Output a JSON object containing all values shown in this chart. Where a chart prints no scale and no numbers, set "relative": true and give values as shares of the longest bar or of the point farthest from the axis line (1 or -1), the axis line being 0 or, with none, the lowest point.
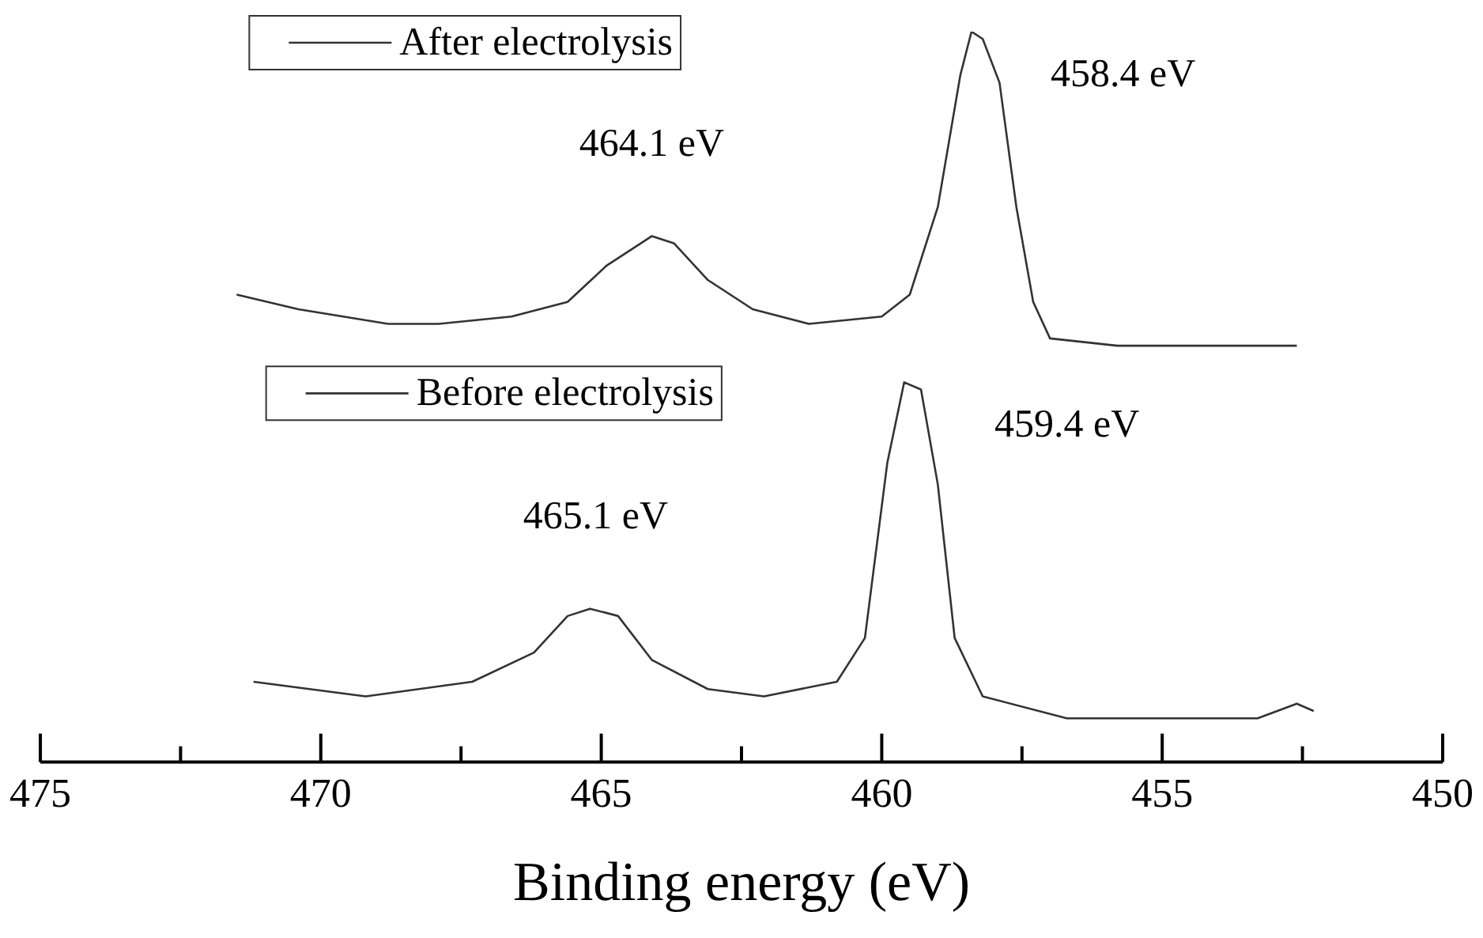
{
  "chart_data": {
    "type": "line",
    "xlabel": "Binding energy (eV)",
    "relative": true,
    "xlim": [
      475,
      450
    ],
    "xticks": [
      475,
      {
        "value": 472.5,
        "label": null
      },
      470,
      {
        "value": 467.5,
        "label": null
      },
      465,
      {
        "value": 462.5,
        "label": null
      },
      460,
      {
        "value": 457.5,
        "label": null
      },
      455,
      {
        "value": 452.5,
        "label": null
      },
      450
    ],
    "grid": false,
    "legend": "top left",
    "marker": "none",
    "line_style": "solid",
    "tick_labels": "x",
    "series": [
      {
        "name": "After electrolysis",
        "color": "#333333",
        "x": [
          471.5,
          470.4,
          468.8,
          467.9,
          466.6,
          465.6,
          464.9,
          464.1,
          463.7,
          463.1,
          462.3,
          461.3,
          460.0,
          459.5,
          459.0,
          458.6,
          458.4,
          458.2,
          457.9,
          457.6,
          457.3,
          457.0,
          455.8,
          453.9,
          452.6
        ],
        "values": [
          0.64,
          0.62,
          0.6,
          0.6,
          0.61,
          0.63,
          0.68,
          0.72,
          0.71,
          0.66,
          0.62,
          0.6,
          0.61,
          0.64,
          0.76,
          0.94,
          1,
          0.99,
          0.93,
          0.76,
          0.63,
          0.58,
          0.57,
          0.57,
          0.57
        ]
      },
      {
        "name": "Before electrolysis",
        "color": "#333333",
        "x": [
          471.2,
          469.2,
          467.3,
          466.2,
          465.6,
          465.2,
          464.7,
          464.1,
          463.1,
          462.1,
          460.8,
          460.3,
          459.9,
          459.6,
          459.3,
          459.0,
          458.7,
          458.2,
          456.7,
          455.2,
          453.3,
          452.6,
          452.3
        ],
        "values": [
          0.11,
          0.09,
          0.11,
          0.15,
          0.2,
          0.21,
          0.2,
          0.14,
          0.1,
          0.09,
          0.11,
          0.17,
          0.41,
          0.52,
          0.51,
          0.38,
          0.17,
          0.09,
          0.06,
          0.06,
          0.06,
          0.08,
          0.07
        ]
      }
    ],
    "annotations": [
      {
        "text": "464.1 eV",
        "x": 464.1,
        "y": 0.72
      },
      {
        "text": "458.4 eV",
        "x": 458.4,
        "y": 1
      },
      {
        "text": "465.1 eV",
        "x": 465.1,
        "y": 0.21
      },
      {
        "text": "459.4 eV",
        "x": 459.4,
        "y": 0.52
      }
    ]
  }
}
